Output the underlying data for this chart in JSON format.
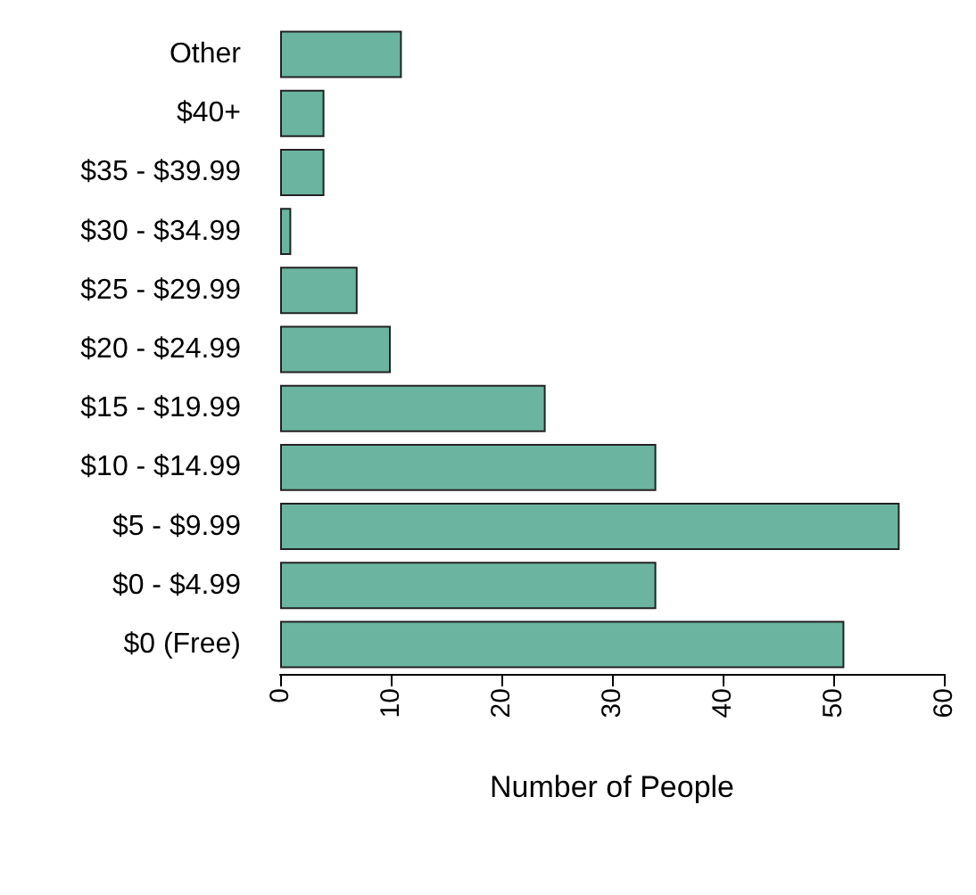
{
  "chart_data": {
    "type": "bar",
    "orientation": "horizontal",
    "xlabel": "Number of People",
    "categories": [
      "Other",
      "$40+",
      "$35 - $39.99",
      "$30 - $34.99",
      "$25 - $29.99",
      "$20 - $24.99",
      "$15 - $19.99",
      "$10 - $14.99",
      "$5 - $9.99",
      "$0 - $4.99",
      "$0 (Free)"
    ],
    "values": [
      11,
      4,
      4,
      1,
      7,
      10,
      24,
      34,
      56,
      34,
      51
    ],
    "color": "#6bb5a0",
    "xlim": [
      0,
      60
    ],
    "xticks": [
      0,
      10,
      20,
      30,
      40,
      50,
      60
    ],
    "grid": false
  }
}
